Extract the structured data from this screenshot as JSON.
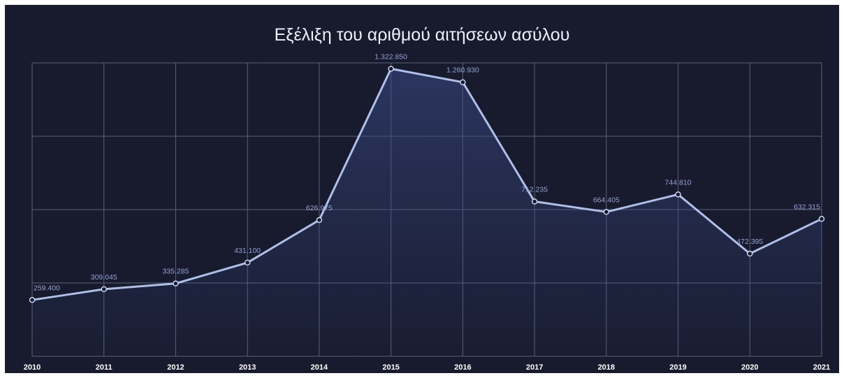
{
  "chart_data": {
    "type": "area",
    "title": "Εξέλιξη του αριθμού αιτήσεων ασύλου",
    "xlabel": "",
    "ylabel": "",
    "categories": [
      "2010",
      "2011",
      "2012",
      "2013",
      "2014",
      "2015",
      "2016",
      "2017",
      "2018",
      "2019",
      "2020",
      "2021"
    ],
    "values": [
      259400,
      309045,
      335285,
      431100,
      626975,
      1322850,
      1260930,
      712235,
      664405,
      744810,
      472395,
      632315
    ],
    "data_labels": [
      "259.400",
      "309.045",
      "335.285",
      "431.100",
      "626.975",
      "1.322.850",
      "1.260.930",
      "712.235",
      "664.405",
      "744.810",
      "472.395",
      "632.315"
    ],
    "ylim": [
      0,
      1350000
    ],
    "grid": true,
    "legend": "none",
    "colors": {
      "background": "#181b2e",
      "line": "#aebfe8",
      "fill": "#3a4a86",
      "grid": "#5d6178",
      "label": "#93a3d6"
    }
  }
}
